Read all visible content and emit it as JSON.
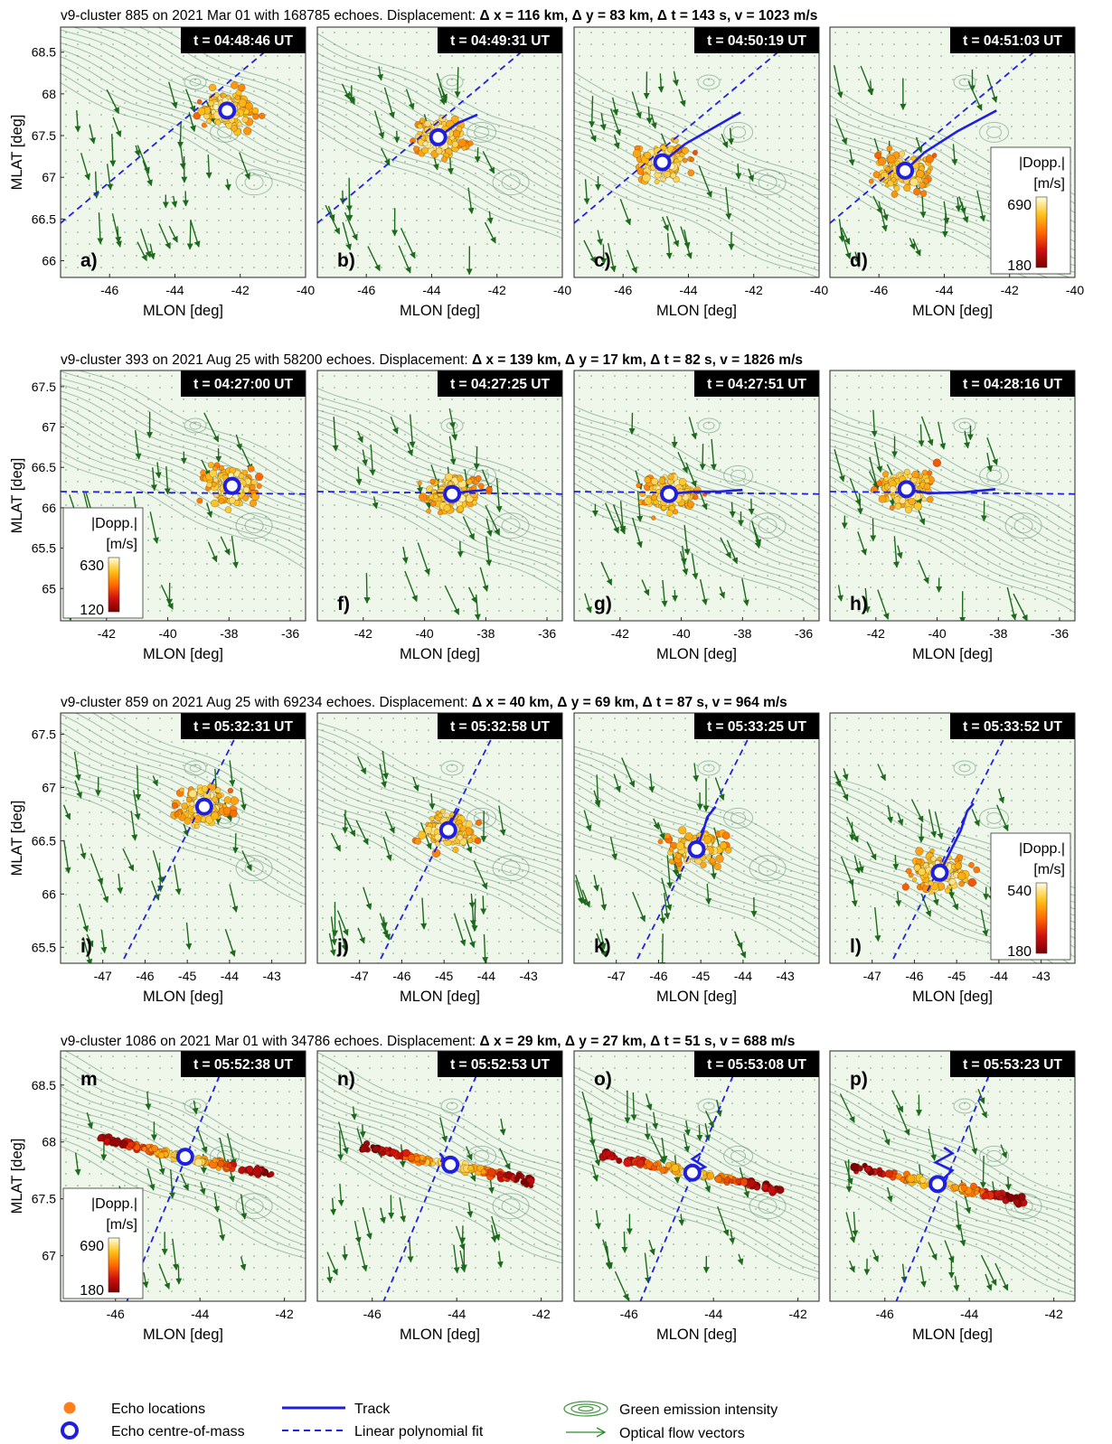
{
  "figure": {
    "xlabel": "MLON [deg]",
    "ylabel": "MLAT [deg]",
    "cbar_title_1": "|Dopp.|",
    "cbar_title_2": "[m/s]"
  },
  "legend": {
    "echo_locations": "Echo locations",
    "echo_com": "Echo centre-of-mass",
    "track": "Track",
    "linear_fit": "Linear polynomial fit",
    "green_emission": "Green emission intensity",
    "optical_flow": "Optical flow vectors"
  },
  "colors": {
    "background": "#eef7ea",
    "contour": "#5f8f74",
    "vector": "#1d6a1d",
    "track": "#1f1fe0",
    "echo_low": "#8b0000",
    "echo_high": "#ffffd0"
  },
  "chart_data": [
    {
      "type": "scatter",
      "title_plain": "v9-cluster 885 on 2021 Mar 01 with 168785  echoes. Displacement: ",
      "title_bold": "Δ x =  116 km, Δ y =  83 km, Δ t =  143 s, v =  1023 m/s",
      "xlim": [
        -47.5,
        -40
      ],
      "ylim": [
        65.8,
        68.8
      ],
      "xticks": [
        -46,
        -44,
        -42,
        -40
      ],
      "yticks": [
        66,
        66.5,
        67,
        67.5,
        68,
        68.5
      ],
      "colorbar": {
        "panel": 3,
        "min": 180,
        "max": 690
      },
      "panels": [
        {
          "label": "a)",
          "time": "t =  04:48:46 UT",
          "com": [
            -42.4,
            67.8
          ],
          "track": [
            [
              -42.4,
              67.8
            ]
          ]
        },
        {
          "label": "b)",
          "time": "t =  04:49:31 UT",
          "com": [
            -43.8,
            67.48
          ],
          "track": [
            [
              -43.8,
              67.48
            ],
            [
              -43.2,
              67.65
            ],
            [
              -42.6,
              67.75
            ]
          ]
        },
        {
          "label": "c)",
          "time": "t =  04:50:19 UT",
          "com": [
            -44.8,
            67.18
          ],
          "track": [
            [
              -44.8,
              67.18
            ],
            [
              -44.1,
              67.4
            ],
            [
              -43.2,
              67.6
            ],
            [
              -42.4,
              67.78
            ]
          ]
        },
        {
          "label": "d)",
          "time": "t =  04:51:03 UT",
          "com": [
            -45.2,
            67.08
          ],
          "track": [
            [
              -45.2,
              67.08
            ],
            [
              -44.6,
              67.3
            ],
            [
              -43.6,
              67.55
            ],
            [
              -42.4,
              67.8
            ]
          ]
        }
      ],
      "fit": [
        [
          -47.5,
          66.45
        ],
        [
          -40.5,
          68.75
        ]
      ]
    },
    {
      "type": "scatter",
      "title_plain": "v9-cluster 393 on 2021 Aug 25 with 58200  echoes. Displacement: ",
      "title_bold": "Δ x =  139 km, Δ y =  17 km, Δ t =  82 s, v =  1826 m/s",
      "xlim": [
        -43.5,
        -35.5
      ],
      "ylim": [
        64.6,
        67.7
      ],
      "xticks": [
        -42,
        -40,
        -38,
        -36
      ],
      "yticks": [
        65,
        65.5,
        66,
        66.5,
        67,
        67.5
      ],
      "colorbar": {
        "panel": 0,
        "min": 120,
        "max": 630
      },
      "panels": [
        {
          "label": "e)",
          "time": "t =  04:27:00 UT",
          "com": [
            -37.9,
            66.27
          ],
          "track": [
            [
              -37.9,
              66.27
            ]
          ]
        },
        {
          "label": "f)",
          "time": "t =  04:27:25 UT",
          "com": [
            -39.1,
            66.17
          ],
          "track": [
            [
              -39.1,
              66.17
            ],
            [
              -38.6,
              66.2
            ],
            [
              -38.0,
              66.22
            ]
          ]
        },
        {
          "label": "g)",
          "time": "t =  04:27:51 UT",
          "com": [
            -40.4,
            66.17
          ],
          "track": [
            [
              -40.4,
              66.17
            ],
            [
              -39.6,
              66.2
            ],
            [
              -38.8,
              66.2
            ],
            [
              -38.0,
              66.22
            ]
          ]
        },
        {
          "label": "h)",
          "time": "t =  04:28:16 UT",
          "com": [
            -41.0,
            66.23
          ],
          "track": [
            [
              -41.0,
              66.23
            ],
            [
              -40.3,
              66.18
            ],
            [
              -39.2,
              66.19
            ],
            [
              -38.1,
              66.23
            ]
          ]
        }
      ],
      "fit": [
        [
          -43.5,
          66.2
        ],
        [
          -35.5,
          66.17
        ]
      ]
    },
    {
      "type": "scatter",
      "title_plain": "v9-cluster 859 on 2021 Aug 25 with 69234  echoes. Displacement: ",
      "title_bold": "Δ x =  40 km, Δ y =  69 km, Δ t =  87 s, v =  964 m/s",
      "xlim": [
        -48,
        -42.2
      ],
      "ylim": [
        65.35,
        67.7
      ],
      "xticks": [
        -47,
        -46,
        -45,
        -44,
        -43
      ],
      "yticks": [
        65.5,
        66,
        66.5,
        67,
        67.5
      ],
      "colorbar": {
        "panel": 3,
        "min": 180,
        "max": 540
      },
      "panels": [
        {
          "label": "i)",
          "time": "t =  05:32:31 UT",
          "com": [
            -44.6,
            66.82
          ],
          "track": [
            [
              -44.6,
              66.82
            ]
          ]
        },
        {
          "label": "j)",
          "time": "t =  05:32:58 UT",
          "com": [
            -44.9,
            66.6
          ],
          "track": [
            [
              -44.9,
              66.6
            ],
            [
              -44.8,
              66.7
            ],
            [
              -44.65,
              66.8
            ]
          ]
        },
        {
          "label": "k)",
          "time": "t =  05:33:25 UT",
          "com": [
            -45.1,
            66.42
          ],
          "track": [
            [
              -45.1,
              66.42
            ],
            [
              -44.95,
              66.58
            ],
            [
              -44.85,
              66.72
            ],
            [
              -44.65,
              66.82
            ]
          ]
        },
        {
          "label": "l)",
          "time": "t =  05:33:52 UT",
          "com": [
            -45.4,
            66.2
          ],
          "track": [
            [
              -45.4,
              66.2
            ],
            [
              -45.15,
              66.4
            ],
            [
              -44.9,
              66.6
            ],
            [
              -44.75,
              66.78
            ],
            [
              -44.6,
              66.85
            ]
          ]
        }
      ],
      "fit": [
        [
          -46.3,
          65.55
        ],
        [
          -43.7,
          67.6
        ]
      ]
    },
    {
      "type": "scatter",
      "title_plain": "v9-cluster 1086 on 2021 Mar 01 with 34786  echoes. Displacement: ",
      "title_bold": "Δ x =  29 km, Δ y =  27 km, Δ t =  51 s, v =  688 m/s",
      "xlim": [
        -47.3,
        -41.5
      ],
      "ylim": [
        66.6,
        68.8
      ],
      "xticks": [
        -46,
        -44,
        -42
      ],
      "yticks": [
        67,
        67.5,
        68,
        68.5
      ],
      "colorbar": {
        "panel": 0,
        "min": 180,
        "max": 690
      },
      "panels": [
        {
          "label": "m",
          "time": "t =  05:52:38 UT",
          "com": [
            -44.35,
            67.87
          ],
          "track": [
            [
              -44.35,
              67.87
            ]
          ]
        },
        {
          "label": "n)",
          "time": "t =  05:52:53 UT",
          "com": [
            -44.15,
            67.8
          ],
          "track": [
            [
              -44.15,
              67.8
            ],
            [
              -44.3,
              67.85
            ],
            [
              -44.4,
              67.9
            ]
          ]
        },
        {
          "label": "o)",
          "time": "t =  05:53:08 UT",
          "com": [
            -44.5,
            67.73
          ],
          "track": [
            [
              -44.5,
              67.73
            ],
            [
              -44.2,
              67.78
            ],
            [
              -44.5,
              67.85
            ],
            [
              -44.3,
              67.9
            ]
          ]
        },
        {
          "label": "p)",
          "time": "t =  05:53:23 UT",
          "com": [
            -44.75,
            67.63
          ],
          "track": [
            [
              -44.75,
              67.63
            ],
            [
              -44.4,
              67.75
            ],
            [
              -44.8,
              67.82
            ],
            [
              -44.4,
              67.9
            ],
            [
              -44.6,
              67.95
            ]
          ]
        }
      ],
      "fit": [
        [
          -44.9,
          67.35
        ],
        [
          -43.85,
          68.3
        ]
      ]
    }
  ]
}
